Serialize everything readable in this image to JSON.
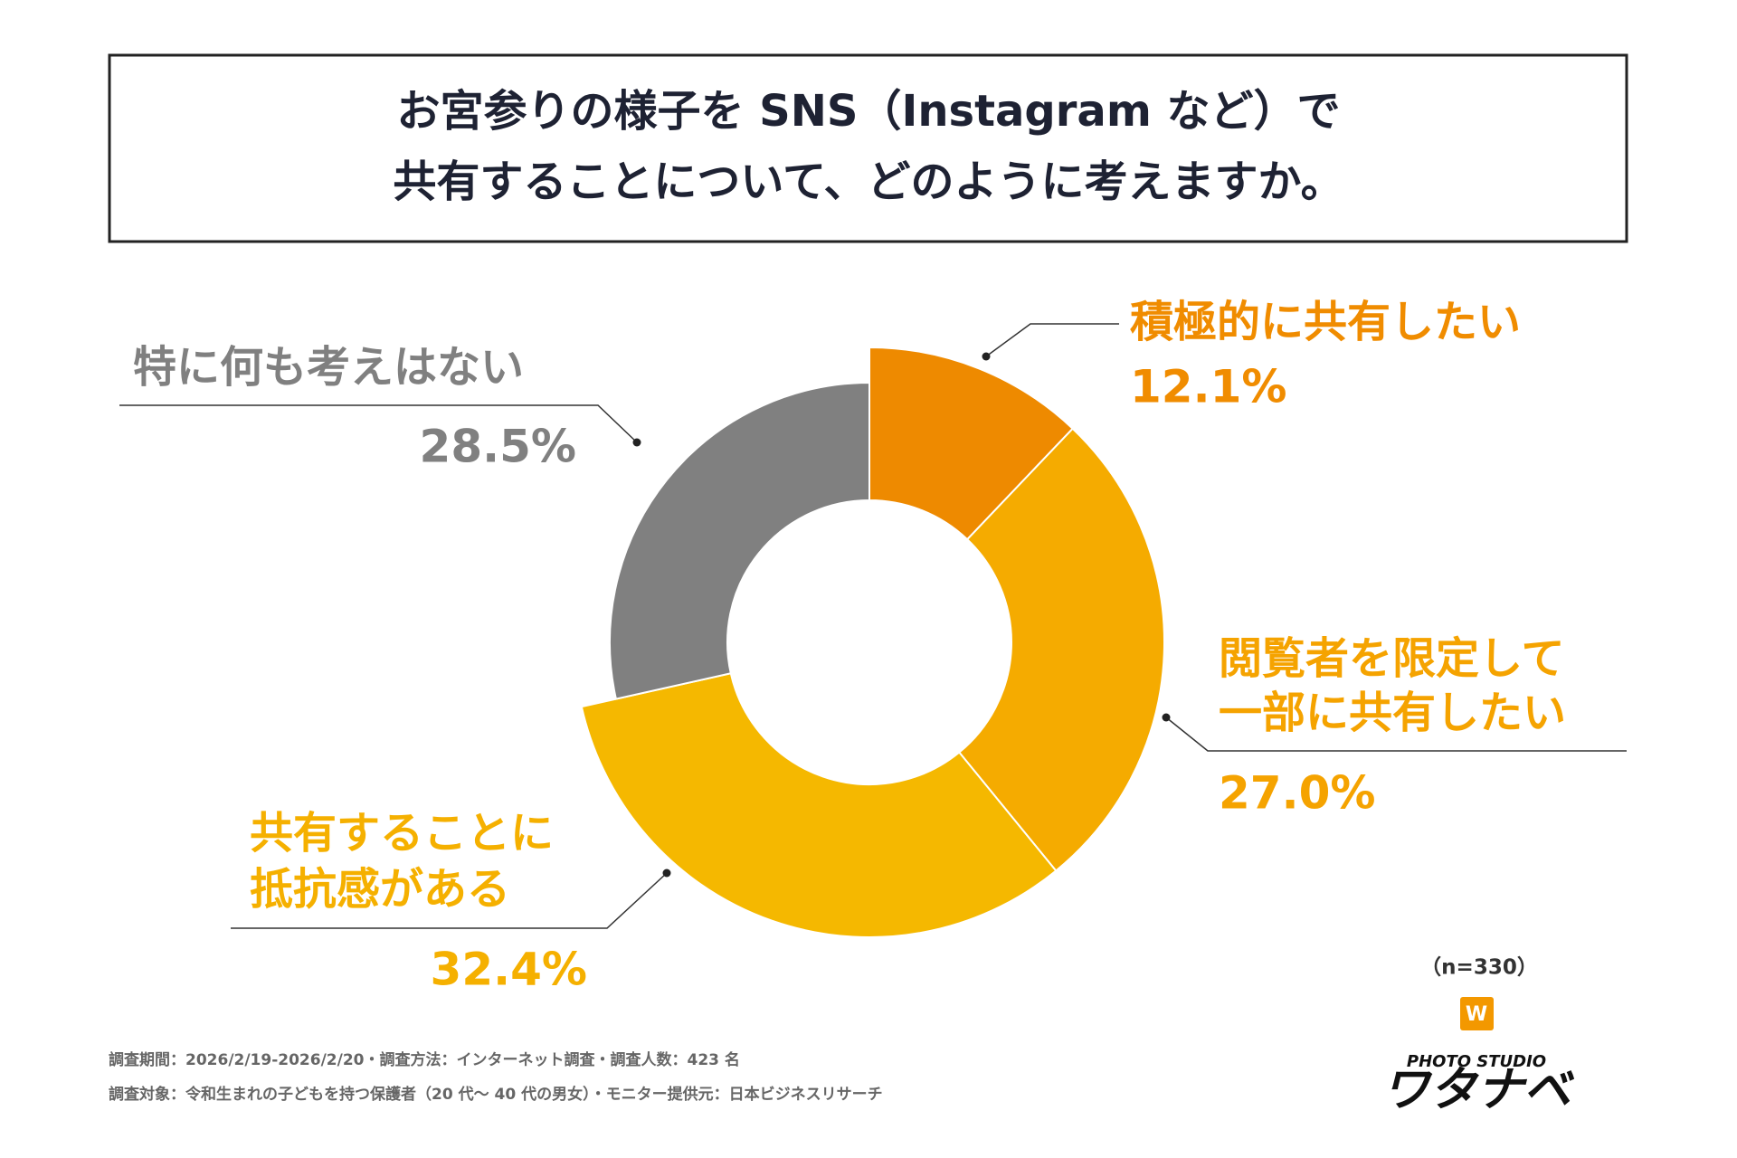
{
  "chart_data": {
    "type": "donut",
    "title": [
      "お宮参りの様子を SNS（Instagram など）で",
      "共有することについて、どのように考えますか。"
    ],
    "categories": [
      [
        "積極的に共有したい"
      ],
      [
        "閲覧者を限定して",
        "一部に共有したい"
      ],
      [
        "共有することに",
        "抵抗感がある"
      ],
      [
        "特に何も考えはない"
      ]
    ],
    "values": [
      12.1,
      27.0,
      32.4,
      28.5
    ],
    "value_labels": [
      "12.1%",
      "27.0%",
      "32.4%",
      "28.5%"
    ],
    "colors": [
      "#ee8a00",
      "#f5ab00",
      "#f5b800",
      "#808080"
    ],
    "label_colors": [
      "#f08c00",
      "#f5a300",
      "#f5b000",
      "#808080"
    ],
    "sample_size": "（n=330）",
    "notes": [
      "調査期間：2026/2/19-2026/2/20・調査方法：インターネット調査・調査人数：423 名",
      "調査対象：令和生まれの子どもを持つ保護者（20 代～ 40 代の男女）・モニター提供元：日本ビジネスリサーチ"
    ],
    "logo": {
      "top": "PHOTO STUDIO",
      "name": "ワタナベ"
    }
  }
}
